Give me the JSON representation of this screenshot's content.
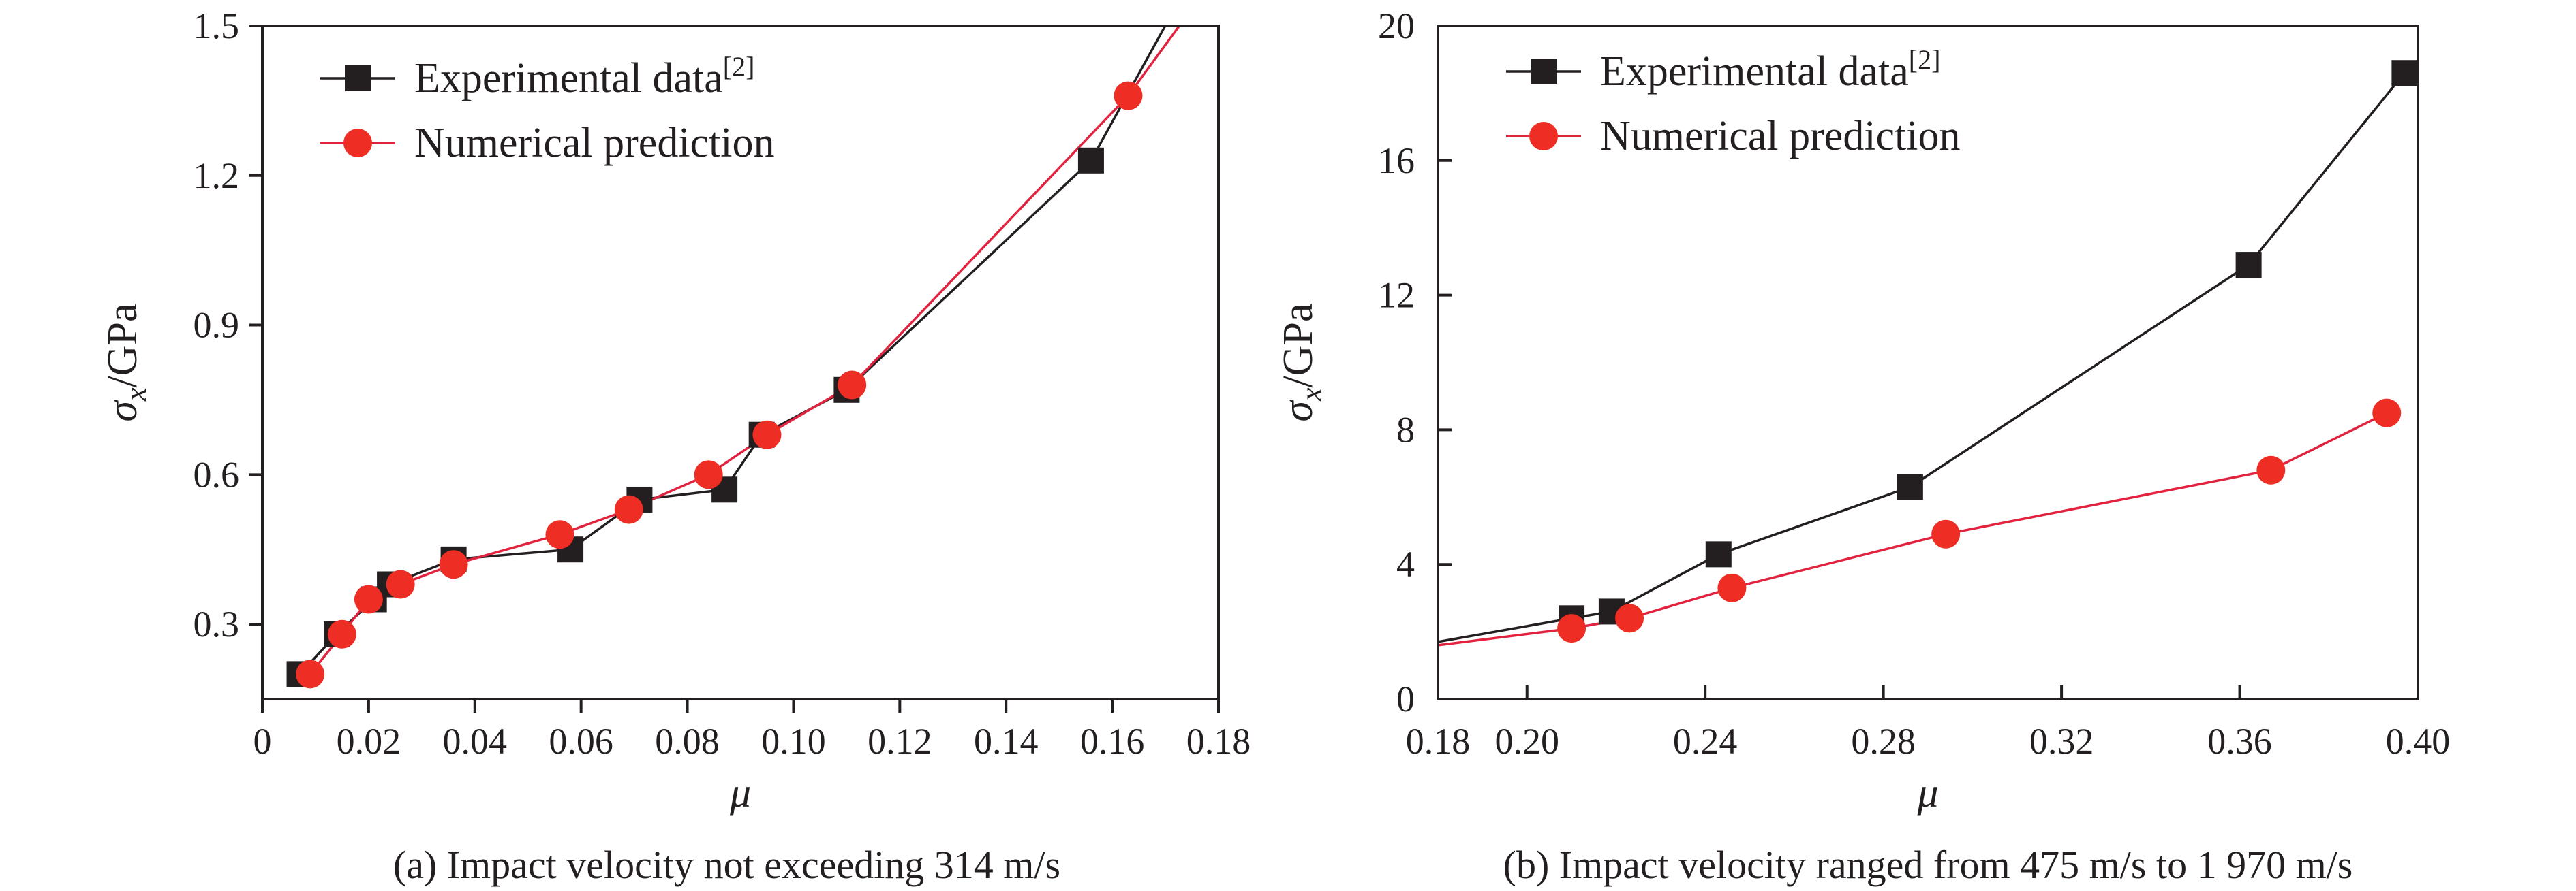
{
  "colors": {
    "experimental": "#231f20",
    "numerical_line": "#e2233f",
    "numerical_marker": "#ee2d24",
    "axis": "#231f20"
  },
  "chart_data": [
    {
      "type": "line",
      "caption": "(a) Impact velocity not exceeding 314 m/s",
      "xlabel": "μ",
      "ylabel": {
        "base": "σ",
        "subscript": "x",
        "unit": "/GPa"
      },
      "xlim": [
        0,
        0.18
      ],
      "ylim": [
        0.15,
        1.5
      ],
      "xticks": [
        0,
        0.02,
        0.04,
        0.06,
        0.08,
        0.1,
        0.12,
        0.14,
        0.16,
        0.18
      ],
      "xtick_labels": [
        "0",
        "0.02",
        "0.04",
        "0.06",
        "0.08",
        "0.10",
        "0.12",
        "0.14",
        "0.16",
        "0.18"
      ],
      "yticks": [
        0.3,
        0.6,
        0.9,
        1.2,
        1.5
      ],
      "ytick_labels": [
        "0.3",
        "0.6",
        "0.9",
        "1.2",
        "1.5"
      ],
      "grid": false,
      "legend_position": "top-left",
      "series": [
        {
          "name": "Experimental data",
          "name_superscript": "[2]",
          "marker": "square",
          "x": [
            0.007,
            0.014,
            0.021,
            0.024,
            0.036,
            0.058,
            0.071,
            0.087,
            0.094,
            0.11,
            0.156
          ],
          "y": [
            0.2,
            0.28,
            0.35,
            0.38,
            0.43,
            0.45,
            0.55,
            0.57,
            0.68,
            0.77,
            1.23
          ],
          "extend_to": [
            0.171,
            1.52
          ]
        },
        {
          "name": "Numerical prediction",
          "marker": "circle",
          "x": [
            0.009,
            0.015,
            0.02,
            0.026,
            0.036,
            0.056,
            0.069,
            0.084,
            0.095,
            0.111,
            0.163
          ],
          "y": [
            0.2,
            0.28,
            0.35,
            0.38,
            0.42,
            0.48,
            0.53,
            0.6,
            0.68,
            0.78,
            1.36
          ],
          "extend_to": [
            0.174,
            1.52
          ]
        }
      ]
    },
    {
      "type": "line",
      "caption": "(b) Impact velocity ranged from 475 m/s to 1 970 m/s",
      "xlabel": "μ",
      "ylabel": {
        "base": "σ",
        "subscript": "x",
        "unit": "/GPa"
      },
      "xlim": [
        0.18,
        0.4
      ],
      "ylim": [
        0,
        20
      ],
      "xticks": [
        0.18,
        0.2,
        0.24,
        0.28,
        0.32,
        0.36,
        0.4
      ],
      "xtick_labels": [
        "0.18",
        "0.20",
        "0.24",
        "0.28",
        "0.32",
        "0.36",
        "0.40"
      ],
      "yticks": [
        0,
        4,
        8,
        12,
        16,
        20
      ],
      "ytick_labels": [
        "0",
        "4",
        "8",
        "12",
        "16",
        "20"
      ],
      "grid": false,
      "legend_position": "top-left",
      "series": [
        {
          "name": "Experimental data",
          "name_superscript": "[2]",
          "marker": "square",
          "x": [
            0.21,
            0.219,
            0.243,
            0.286,
            0.362,
            0.397
          ],
          "y": [
            2.4,
            2.6,
            4.3,
            6.3,
            12.9,
            18.6
          ],
          "extend_from": [
            0.18,
            1.7
          ]
        },
        {
          "name": "Numerical prediction",
          "marker": "circle",
          "x": [
            0.21,
            0.223,
            0.246,
            0.294,
            0.367,
            0.393
          ],
          "y": [
            2.1,
            2.4,
            3.3,
            4.9,
            6.8,
            8.5
          ],
          "extend_from": [
            0.18,
            1.6
          ]
        }
      ]
    }
  ]
}
